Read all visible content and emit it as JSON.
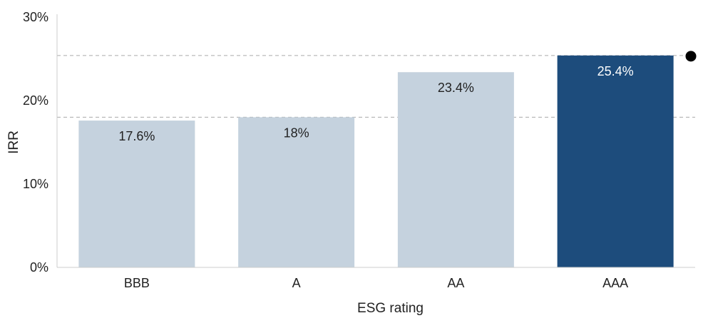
{
  "chart_data": {
    "type": "bar",
    "categories": [
      "BBB",
      "A",
      "AA",
      "AAA"
    ],
    "values": [
      17.6,
      18,
      23.4,
      25.4
    ],
    "value_labels": [
      "17.6%",
      "18%",
      "23.4%",
      "25.4%"
    ],
    "xlabel": "ESG rating",
    "ylabel": "IRR",
    "ylim": [
      0,
      30
    ],
    "yticks": [
      0,
      10,
      20,
      30
    ],
    "ytick_labels": [
      "0%",
      "10%",
      "20%",
      "30%"
    ],
    "reference_lines": [
      18,
      25.4
    ],
    "grid": false,
    "colors": {
      "bar": "#c5d2de",
      "highlight_bar": "#1d4c7c",
      "label_dark": "#222222",
      "label_light": "#ffffff",
      "reference_line": "#aaaaaa",
      "axis": "#cccccc",
      "marker": "#000000"
    },
    "highlight_index": 3
  }
}
